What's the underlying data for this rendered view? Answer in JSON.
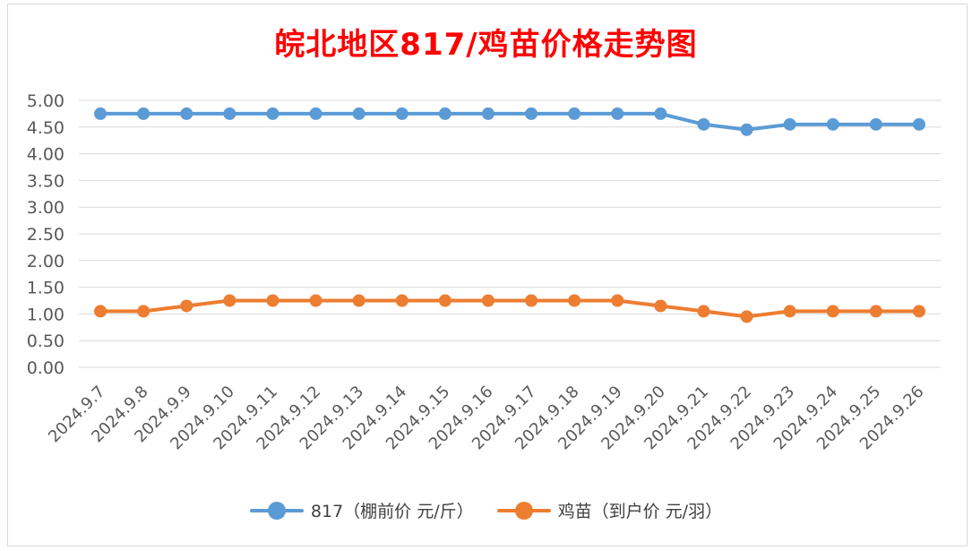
{
  "colors": {
    "series1": "#5b9bd5",
    "series2": "#ed7d31",
    "title": "#ff0000",
    "grid": "#d9d9d9",
    "text": "#595959"
  },
  "chart_data": {
    "type": "line",
    "title": "皖北地区817/鸡苗价格走势图",
    "xlabel": "",
    "ylabel": "",
    "ylim": [
      0,
      5
    ],
    "y_ticks": [
      "0.00",
      "0.50",
      "1.00",
      "1.50",
      "2.00",
      "2.50",
      "3.00",
      "3.50",
      "4.00",
      "4.50",
      "5.00"
    ],
    "grid": true,
    "legend_position": "bottom",
    "categories": [
      "2024.9.7",
      "2024.9.8",
      "2024.9.9",
      "2024.9.10",
      "2024.9.11",
      "2024.9.12",
      "2024.9.13",
      "2024.9.14",
      "2024.9.15",
      "2024.9.16",
      "2024.9.17",
      "2024.9.18",
      "2024.9.19",
      "2024.9.20",
      "2024.9.21",
      "2024.9.22",
      "2024.9.23",
      "2024.9.24",
      "2024.9.25",
      "2024.9.26"
    ],
    "series": [
      {
        "name": "817（棚前价 元/斤）",
        "color": "#5b9bd5",
        "values": [
          4.75,
          4.75,
          4.75,
          4.75,
          4.75,
          4.75,
          4.75,
          4.75,
          4.75,
          4.75,
          4.75,
          4.75,
          4.75,
          4.75,
          4.55,
          4.45,
          4.55,
          4.55,
          4.55,
          4.55
        ]
      },
      {
        "name": "鸡苗（到户价 元/羽）",
        "color": "#ed7d31",
        "values": [
          1.05,
          1.05,
          1.15,
          1.25,
          1.25,
          1.25,
          1.25,
          1.25,
          1.25,
          1.25,
          1.25,
          1.25,
          1.25,
          1.15,
          1.05,
          0.95,
          1.05,
          1.05,
          1.05,
          1.05
        ]
      }
    ]
  }
}
